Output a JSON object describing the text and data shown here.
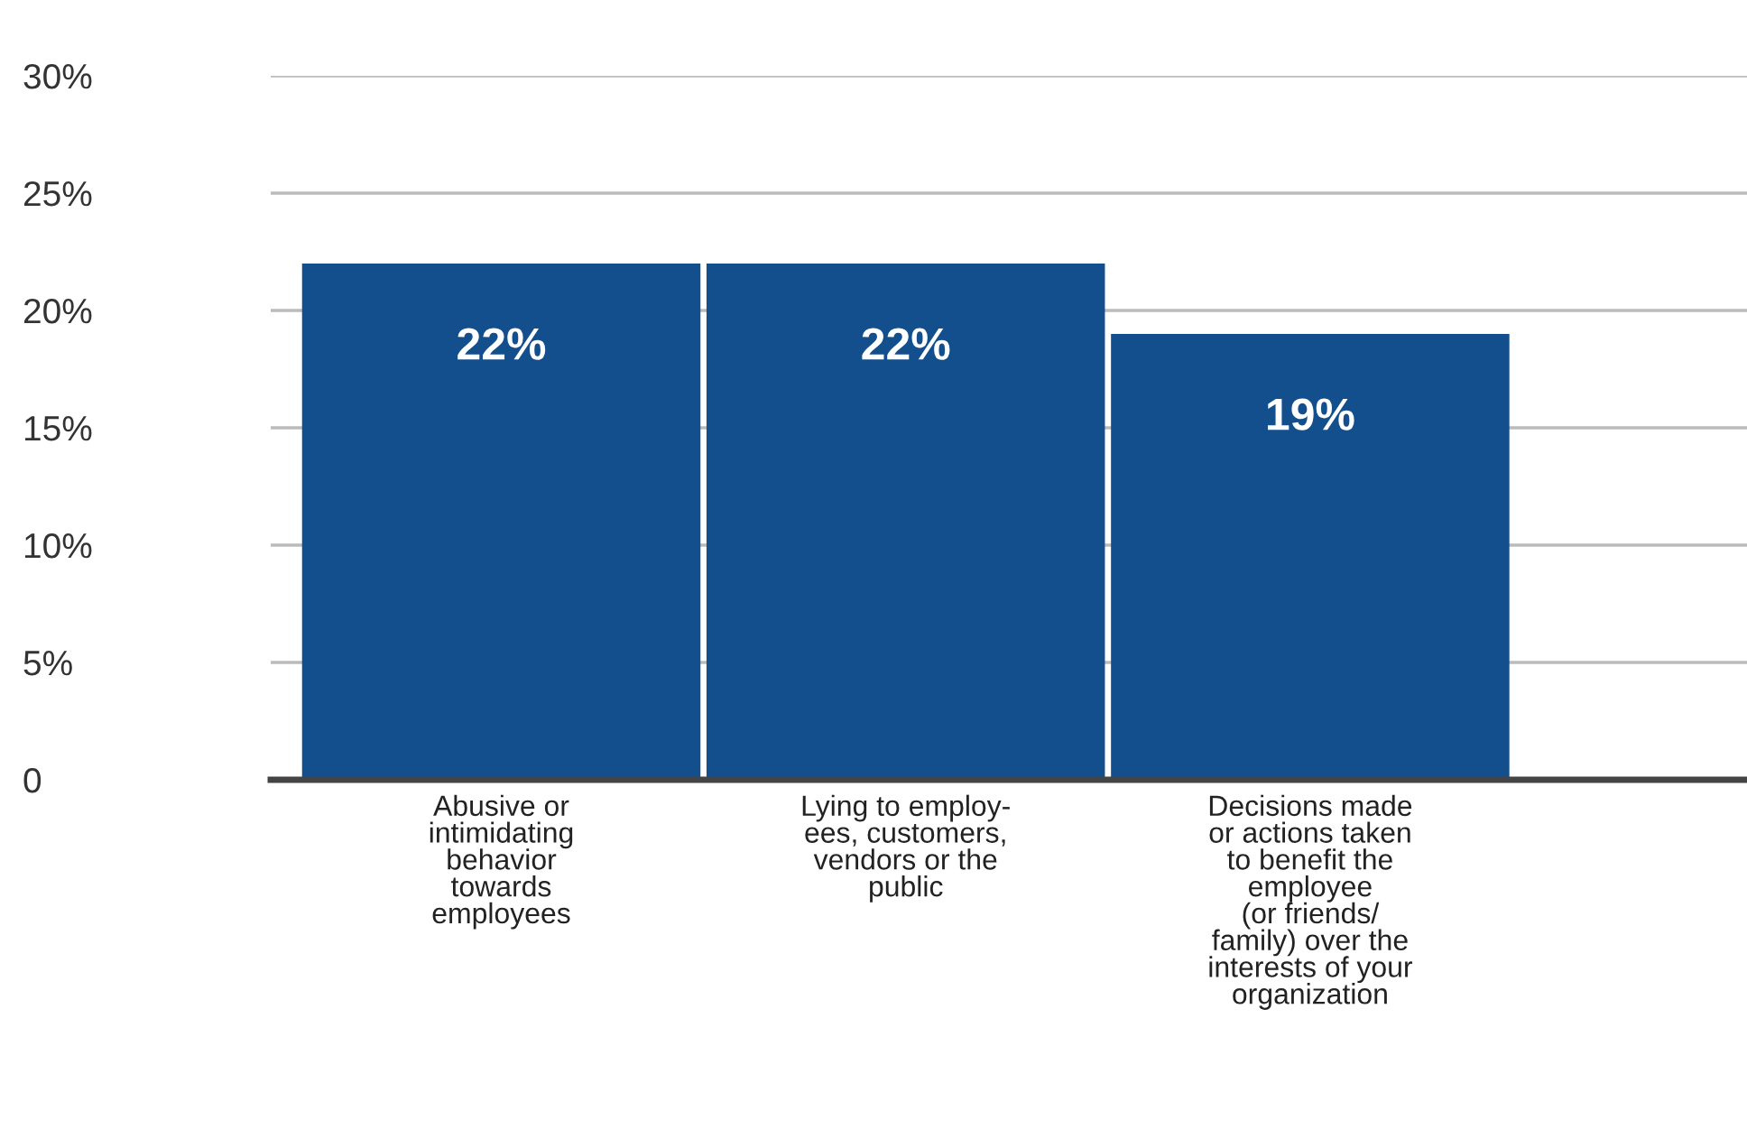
{
  "chart_data": {
    "type": "bar",
    "categories": [
      "Abusive or\nintimidating\nbehavior\ntowards\nemployees",
      "Lying to employ-\nees, customers,\nvendors or the\npublic",
      "Decisions made\nor actions taken\nto benefit the\nemployee\n(or friends/\nfamily) over the\ninterests of your\norganization"
    ],
    "values": [
      22,
      22,
      19
    ],
    "color": "#134f8c",
    "value_labels": [
      "22%",
      "22%",
      "19%"
    ],
    "ylim": [
      0,
      30
    ],
    "yticks": [
      {
        "value": 0,
        "label": "0"
      },
      {
        "value": 5,
        "label": "5%"
      },
      {
        "value": 10,
        "label": "10%"
      },
      {
        "value": 15,
        "label": "15%"
      },
      {
        "value": 20,
        "label": "20%"
      },
      {
        "value": 25,
        "label": "25%"
      },
      {
        "value": 30,
        "label": "30%"
      }
    ],
    "grid": "y"
  }
}
